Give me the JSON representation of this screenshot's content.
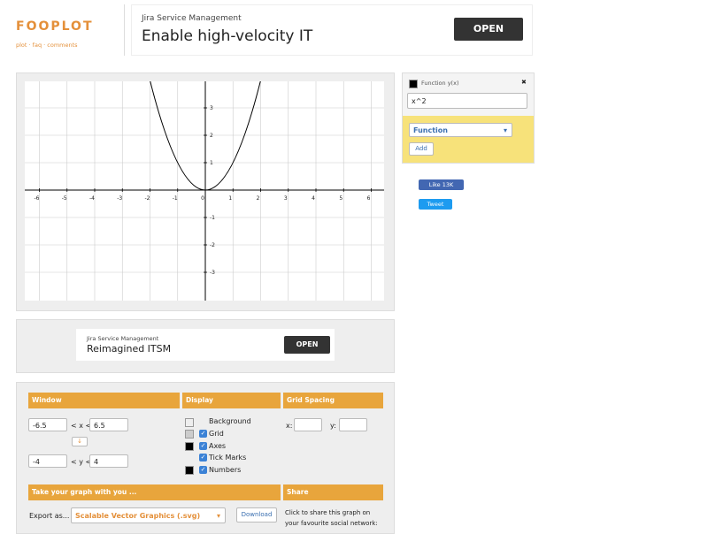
{
  "header": {
    "logo": "FOOPLOT",
    "nav": [
      "plot",
      "faq",
      "comments"
    ]
  },
  "top_ad": {
    "brand": "Jira Service Management",
    "headline": "Enable high-velocity IT",
    "button": "OPEN"
  },
  "graph": {
    "x_tick_labels": [
      -6,
      -5,
      -4,
      -3,
      -2,
      -1,
      0,
      1,
      2,
      3,
      4,
      5,
      6
    ],
    "y_tick_labels": [
      3,
      2,
      1,
      -1,
      -2,
      -3
    ]
  },
  "function_panel": {
    "title": "Function y(x)",
    "close": "✖",
    "expression": "x^2",
    "type_select": "Function",
    "add_button": "Add"
  },
  "social": {
    "like": "Like 13K",
    "tweet": "Tweet"
  },
  "mid_ad": {
    "brand": "Jira Service Management",
    "headline": "Reimagined ITSM",
    "button": "OPEN"
  },
  "settings": {
    "window": {
      "title": "Window",
      "xmin": "-6.5",
      "x_label": "< x <",
      "xmax": "6.5",
      "ymin": "-4",
      "y_label": "< y <",
      "ymax": "4"
    },
    "display": {
      "title": "Display",
      "options": [
        "Background",
        "Grid",
        "Axes",
        "Tick Marks",
        "Numbers"
      ]
    },
    "grid_spacing": {
      "title": "Grid Spacing",
      "x_label": "x:",
      "y_label": "y:"
    },
    "export": {
      "title": "Take your graph with you ...",
      "label": "Export as...",
      "format": "Scalable Vector Graphics (.svg)",
      "button": "Download"
    },
    "share": {
      "title": "Share",
      "text": "Click to share this graph on your favourite social network:"
    }
  }
}
